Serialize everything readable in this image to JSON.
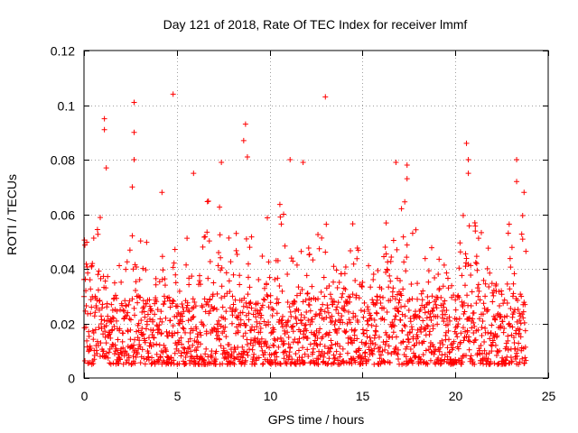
{
  "chart_data": {
    "type": "scatter",
    "title": "Day 121 of 2018, Rate Of TEC Index for receiver lmmf",
    "xlabel": "GPS time / hours",
    "ylabel": "ROTI / TECUs",
    "xlim": [
      0,
      25
    ],
    "ylim": [
      0,
      0.12
    ],
    "xticks": [
      0,
      5,
      10,
      15,
      20,
      25
    ],
    "xtick_labels": [
      "0",
      "5",
      "10",
      "15",
      "20",
      "25"
    ],
    "yticks": [
      0,
      0.02,
      0.04,
      0.06,
      0.08,
      0.1,
      0.12
    ],
    "ytick_labels": [
      "0",
      "0.02",
      "0.04",
      "0.06",
      "0.08",
      "0.1",
      "0.12"
    ],
    "grid": true,
    "marker": "+",
    "color": "#ff0000",
    "series": [
      {
        "name": "ROTI",
        "data_range_x": [
          0,
          23.8
        ],
        "typical_y_range": [
          0.005,
          0.03
        ],
        "notable_points": [
          {
            "x": 1.1,
            "y": 0.095
          },
          {
            "x": 1.1,
            "y": 0.091
          },
          {
            "x": 1.2,
            "y": 0.077
          },
          {
            "x": 2.7,
            "y": 0.101
          },
          {
            "x": 2.7,
            "y": 0.09
          },
          {
            "x": 2.7,
            "y": 0.08
          },
          {
            "x": 2.6,
            "y": 0.07
          },
          {
            "x": 4.8,
            "y": 0.104
          },
          {
            "x": 4.2,
            "y": 0.068
          },
          {
            "x": 5.9,
            "y": 0.075
          },
          {
            "x": 7.4,
            "y": 0.079
          },
          {
            "x": 8.7,
            "y": 0.093
          },
          {
            "x": 8.6,
            "y": 0.087
          },
          {
            "x": 8.8,
            "y": 0.081
          },
          {
            "x": 11.1,
            "y": 0.08
          },
          {
            "x": 11.8,
            "y": 0.079
          },
          {
            "x": 13.0,
            "y": 0.103
          },
          {
            "x": 16.8,
            "y": 0.079
          },
          {
            "x": 17.4,
            "y": 0.078
          },
          {
            "x": 17.4,
            "y": 0.073
          },
          {
            "x": 20.6,
            "y": 0.086
          },
          {
            "x": 20.7,
            "y": 0.08
          },
          {
            "x": 20.7,
            "y": 0.075
          },
          {
            "x": 23.3,
            "y": 0.08
          },
          {
            "x": 23.3,
            "y": 0.072
          },
          {
            "x": 23.7,
            "y": 0.068
          }
        ]
      }
    ]
  }
}
